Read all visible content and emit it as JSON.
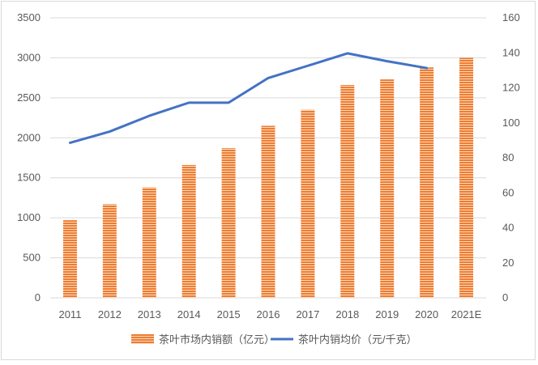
{
  "chart_data": {
    "type": "bar+line",
    "categories": [
      "2011",
      "2012",
      "2013",
      "2014",
      "2015",
      "2016",
      "2017",
      "2018",
      "2019",
      "2020",
      "2021E"
    ],
    "series": [
      {
        "name": "茶叶市场内销额（亿元）",
        "type": "bar",
        "axis": "left",
        "values": [
          970,
          1170,
          1380,
          1660,
          1870,
          2150,
          2350,
          2660,
          2730,
          2880,
          3000
        ]
      },
      {
        "name": "茶叶内销均价（元/千克）",
        "type": "line",
        "axis": "right",
        "values": [
          88.6,
          95,
          104,
          111.5,
          111.5,
          125.6,
          132.6,
          139.7,
          135.2,
          131.3,
          null
        ]
      }
    ],
    "y_left": {
      "ylim": [
        0,
        3500
      ],
      "ticks": [
        "0",
        "500",
        "1000",
        "1500",
        "2000",
        "2500",
        "3000",
        "3500"
      ]
    },
    "y_right": {
      "ylim": [
        0,
        160
      ],
      "ticks": [
        "0",
        "20",
        "40",
        "60",
        "80",
        "100",
        "120",
        "140",
        "160"
      ]
    },
    "grid": true,
    "legend_position": "bottom",
    "colors": {
      "bar": "#ed7d31",
      "bar_stripe": "#ffffff",
      "line": "#4472c4",
      "grid": "#d9d9d9",
      "text": "#595959"
    }
  }
}
